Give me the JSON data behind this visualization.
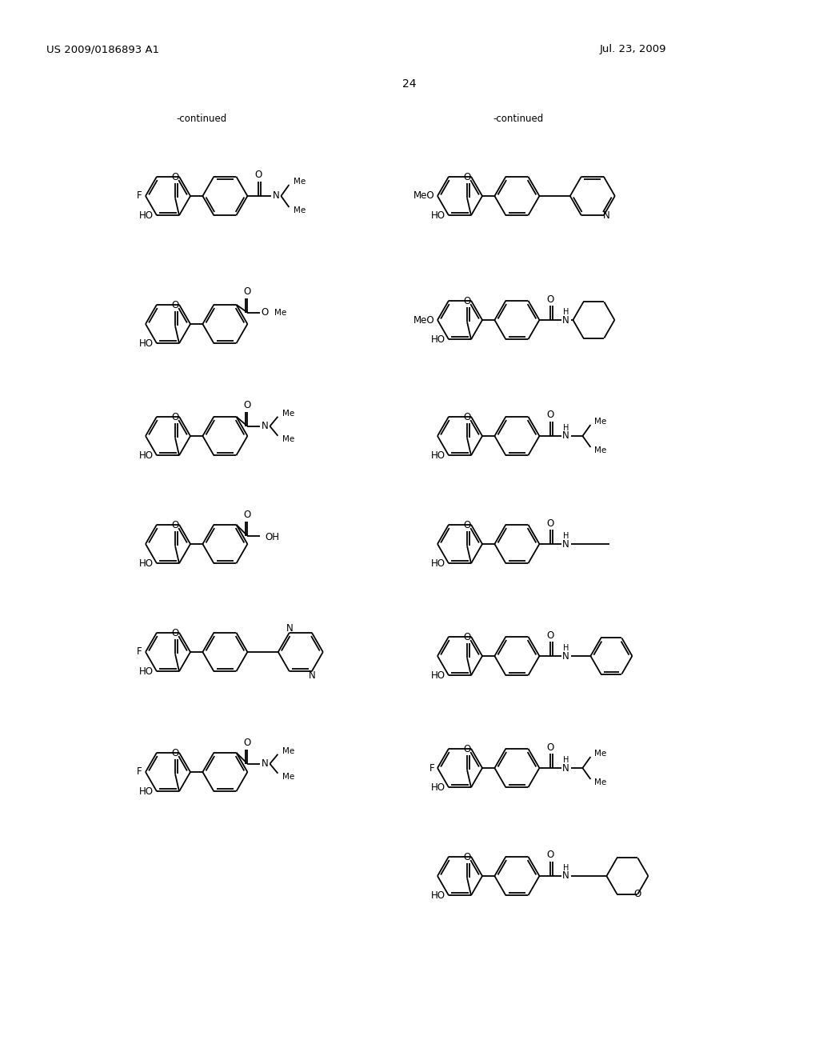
{
  "page_header_left": "US 2009/0186893 A1",
  "page_header_right": "Jul. 23, 2009",
  "page_number": "24",
  "bg": "#ffffff"
}
